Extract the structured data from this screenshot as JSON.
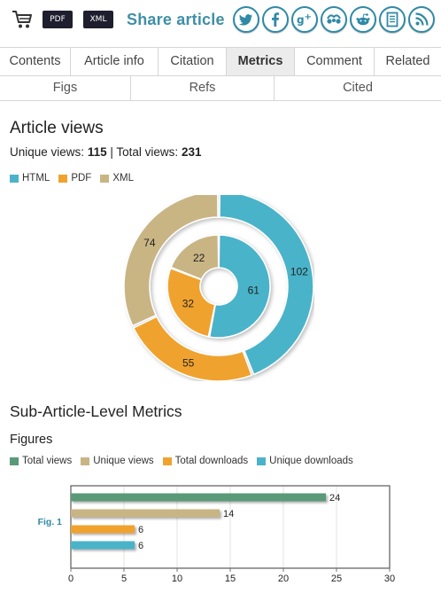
{
  "toolbar": {
    "cart_icon": "shopping-cart-icon",
    "pdf_label": "PDF",
    "xml_label": "XML",
    "share_title": "Share article",
    "social": [
      {
        "name": "twitter",
        "glyph": "t"
      },
      {
        "name": "facebook",
        "glyph": "f"
      },
      {
        "name": "google-plus",
        "glyph": "g+"
      },
      {
        "name": "mendeley",
        "glyph": "m"
      },
      {
        "name": "reddit",
        "glyph": "r"
      },
      {
        "name": "citeulike",
        "glyph": "c"
      },
      {
        "name": "rss",
        "glyph": "rss"
      }
    ]
  },
  "tabs": {
    "row1": [
      "Contents",
      "Article info",
      "Citation",
      "Metrics",
      "Comment",
      "Related"
    ],
    "active": "Metrics",
    "row2": [
      "Figs",
      "Refs",
      "Cited"
    ]
  },
  "article_views": {
    "title": "Article views",
    "unique_label": "Unique views:",
    "unique_value": "115",
    "separator": "|",
    "total_label": "Total views:",
    "total_value": "231",
    "legend": [
      {
        "label": "HTML",
        "color": "#4ab3c9"
      },
      {
        "label": "PDF",
        "color": "#f0a22e"
      },
      {
        "label": "XML",
        "color": "#c9b584"
      }
    ]
  },
  "sub_metrics": {
    "title": "Sub-Article-Level Metrics",
    "figures_title": "Figures",
    "legend": [
      {
        "label": "Total views",
        "color": "#5a9a78"
      },
      {
        "label": "Unique views",
        "color": "#c9b584"
      },
      {
        "label": "Total downloads",
        "color": "#f0a22e"
      },
      {
        "label": "Unique downloads",
        "color": "#4ab3c9"
      }
    ]
  },
  "chart_data": [
    {
      "type": "pie",
      "variant": "nested-donut",
      "title": "",
      "categories": [
        "HTML",
        "PDF",
        "XML"
      ],
      "colors": [
        "#4ab3c9",
        "#f0a22e",
        "#c9b584"
      ],
      "series": [
        {
          "name": "Total views",
          "ring": "outer",
          "values": [
            102,
            55,
            74
          ]
        },
        {
          "name": "Unique views",
          "ring": "inner",
          "values": [
            61,
            32,
            22
          ]
        }
      ]
    },
    {
      "type": "bar",
      "orientation": "horizontal",
      "title": "",
      "categories": [
        "Fig. 1"
      ],
      "series": [
        {
          "name": "Total views",
          "color": "#5a9a78",
          "values": [
            24
          ]
        },
        {
          "name": "Unique views",
          "color": "#c9b584",
          "values": [
            14
          ]
        },
        {
          "name": "Total downloads",
          "color": "#f0a22e",
          "values": [
            6
          ]
        },
        {
          "name": "Unique downloads",
          "color": "#4ab3c9",
          "values": [
            6
          ]
        }
      ],
      "xlim": [
        0,
        30
      ],
      "xticks": [
        0,
        5,
        10,
        15,
        20,
        25,
        30
      ],
      "grid": true
    }
  ]
}
